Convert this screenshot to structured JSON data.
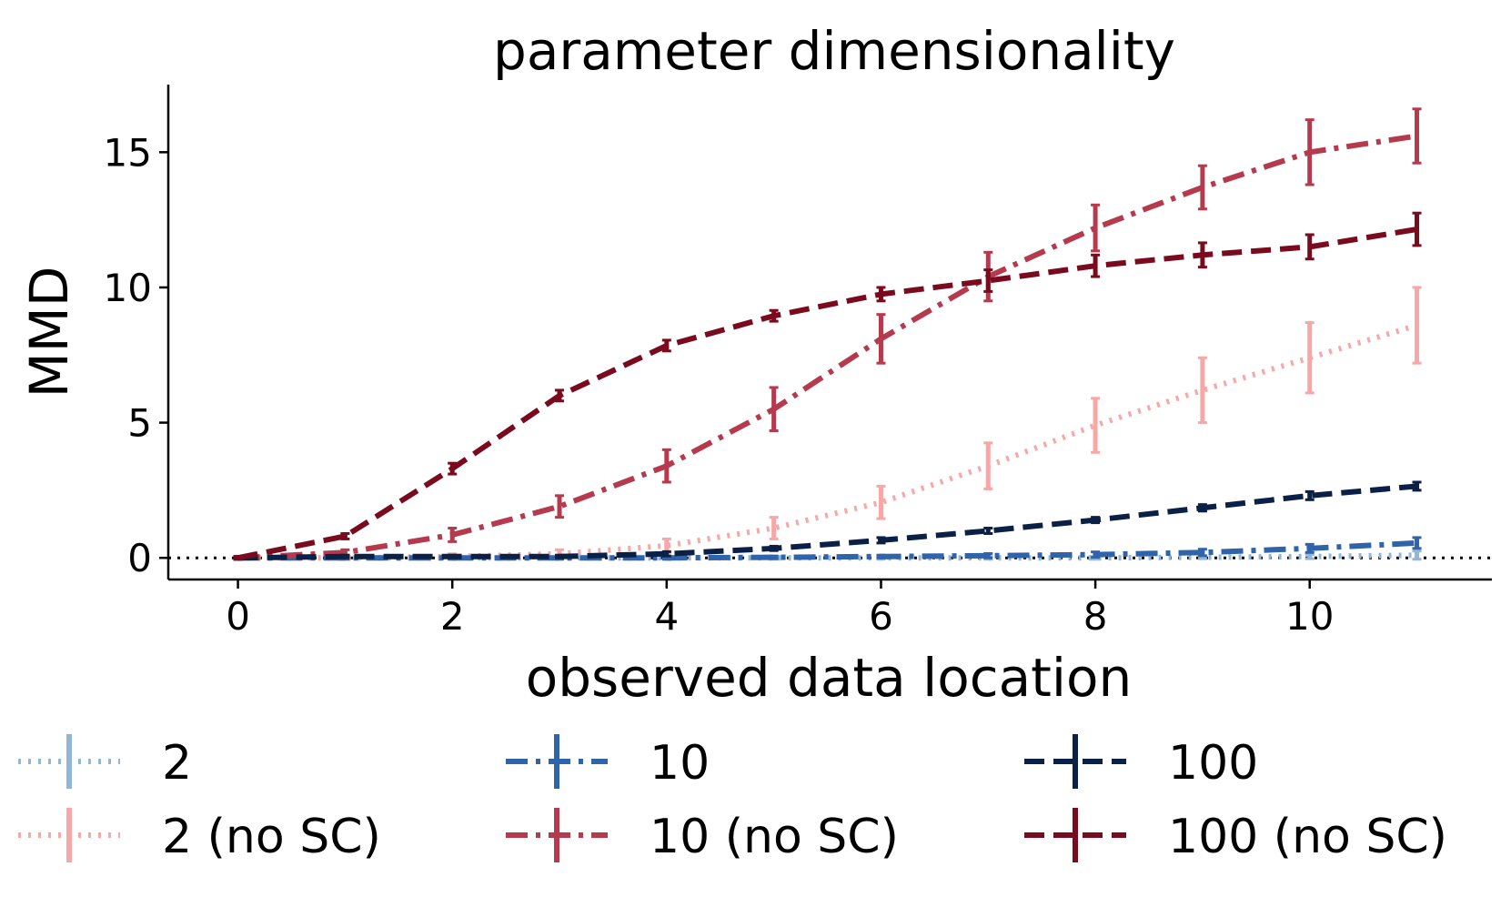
{
  "chart_data": {
    "type": "line",
    "title": "parameter dimensionality",
    "xlabel": "observed data location",
    "ylabel": "MMD",
    "xlim": [
      -0.65,
      11.7
    ],
    "ylim": [
      -0.8,
      17.5
    ],
    "xticks": [
      0,
      2,
      4,
      6,
      8,
      10
    ],
    "yticks": [
      0,
      5,
      10,
      15
    ],
    "xtick_labels": [
      "0",
      "2",
      "4",
      "6",
      "8",
      "10"
    ],
    "ytick_labels": [
      "0",
      "5",
      "10",
      "15"
    ],
    "reference_line": {
      "y": 0,
      "style": "dotted",
      "color": "#000000"
    },
    "grid": false,
    "legend_position": "bottom",
    "series": [
      {
        "name": "2",
        "color": "#92b6d5",
        "dash": "dotted",
        "x": [
          0,
          1,
          2,
          3,
          4,
          5,
          6,
          7,
          8,
          9,
          10,
          11
        ],
        "y": [
          0,
          0,
          0,
          0,
          0,
          0,
          0,
          0,
          0,
          0.02,
          0.05,
          0.1
        ],
        "err": [
          0.05,
          0.05,
          0.05,
          0.05,
          0.05,
          0.05,
          0.05,
          0.05,
          0.05,
          0.05,
          0.08,
          0.15
        ]
      },
      {
        "name": "2 (no SC)",
        "color": "#f7a7a6",
        "dash": "dotted",
        "x": [
          0,
          1,
          2,
          3,
          4,
          5,
          6,
          7,
          8,
          9,
          10,
          11
        ],
        "y": [
          0,
          0,
          0.05,
          0.15,
          0.45,
          1.1,
          2.05,
          3.4,
          4.9,
          6.2,
          7.4,
          8.6
        ],
        "err": [
          0.05,
          0.05,
          0.1,
          0.15,
          0.25,
          0.4,
          0.6,
          0.85,
          1.0,
          1.2,
          1.3,
          1.4
        ]
      },
      {
        "name": "10",
        "color": "#2f64ab",
        "dash": "dashdot",
        "x": [
          0,
          1,
          2,
          3,
          4,
          5,
          6,
          7,
          8,
          9,
          10,
          11
        ],
        "y": [
          0,
          0,
          0,
          0,
          0,
          0.02,
          0.05,
          0.08,
          0.12,
          0.2,
          0.35,
          0.55
        ],
        "err": [
          0.05,
          0.05,
          0.05,
          0.05,
          0.05,
          0.05,
          0.05,
          0.08,
          0.1,
          0.12,
          0.15,
          0.2
        ]
      },
      {
        "name": "10 (no SC)",
        "color": "#b53a4d",
        "dash": "dashdot",
        "x": [
          0,
          1,
          2,
          3,
          4,
          5,
          6,
          7,
          8,
          9,
          10,
          11
        ],
        "y": [
          0,
          0.2,
          0.85,
          1.9,
          3.4,
          5.5,
          8.1,
          10.4,
          12.2,
          13.7,
          15.0,
          15.6
        ],
        "err": [
          0.05,
          0.1,
          0.25,
          0.4,
          0.6,
          0.8,
          0.9,
          0.9,
          0.85,
          0.8,
          1.2,
          1.0
        ]
      },
      {
        "name": "100",
        "color": "#0b2046",
        "dash": "dashed",
        "x": [
          0,
          1,
          2,
          3,
          4,
          5,
          6,
          7,
          8,
          9,
          10,
          11
        ],
        "y": [
          0,
          0.05,
          0.05,
          0.05,
          0.15,
          0.35,
          0.65,
          1.0,
          1.4,
          1.85,
          2.3,
          2.65
        ],
        "err": [
          0.05,
          0.05,
          0.05,
          0.05,
          0.08,
          0.08,
          0.1,
          0.1,
          0.1,
          0.12,
          0.15,
          0.15
        ]
      },
      {
        "name": "100 (no SC)",
        "color": "#7a0a1d",
        "dash": "dashed",
        "x": [
          0,
          1,
          2,
          3,
          4,
          5,
          6,
          7,
          8,
          9,
          10,
          11
        ],
        "y": [
          0,
          0.8,
          3.3,
          6.0,
          7.85,
          8.95,
          9.75,
          10.25,
          10.8,
          11.2,
          11.5,
          12.15
        ],
        "err": [
          0.05,
          0.1,
          0.2,
          0.2,
          0.2,
          0.2,
          0.25,
          0.4,
          0.4,
          0.45,
          0.45,
          0.6
        ]
      }
    ]
  }
}
